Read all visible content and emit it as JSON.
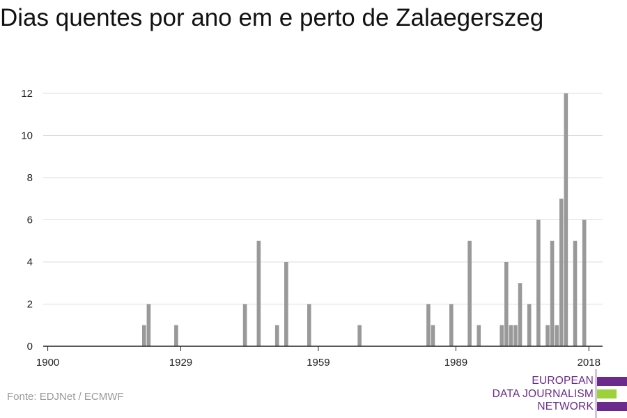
{
  "title": "Dias quentes por ano em e perto de Zalaegerszeg",
  "source": "Fonte: EDJNet / ECMWF",
  "logo": {
    "lines": [
      "EUROPEAN",
      "DATA JOURNALISM",
      "NETWORK"
    ],
    "colors": {
      "purple": "#6b2a8c",
      "green": "#9bd23a"
    }
  },
  "colors": {
    "bar": "#999999",
    "grid": "#dddddd",
    "axis": "#222222",
    "text": "#222222"
  },
  "chart_data": {
    "type": "bar",
    "title": "Dias quentes por ano em e perto de Zalaegerszeg",
    "xlabel": "",
    "ylabel": "",
    "xlim": [
      1899,
      2021
    ],
    "ylim": [
      0,
      12
    ],
    "yticks": [
      0,
      2,
      4,
      6,
      8,
      10,
      12
    ],
    "xticks": [
      1900,
      1929,
      1959,
      1989,
      2018
    ],
    "grid": true,
    "x": [
      1921,
      1922,
      1928,
      1943,
      1946,
      1950,
      1952,
      1957,
      1968,
      1983,
      1984,
      1988,
      1992,
      1994,
      1999,
      2000,
      2001,
      2002,
      2003,
      2005,
      2007,
      2009,
      2010,
      2011,
      2012,
      2013,
      2015,
      2017
    ],
    "values": [
      1,
      2,
      1,
      2,
      5,
      1,
      4,
      2,
      1,
      2,
      1,
      2,
      5,
      1,
      1,
      4,
      1,
      1,
      3,
      2,
      6,
      1,
      5,
      1,
      7,
      12,
      5,
      6
    ]
  }
}
